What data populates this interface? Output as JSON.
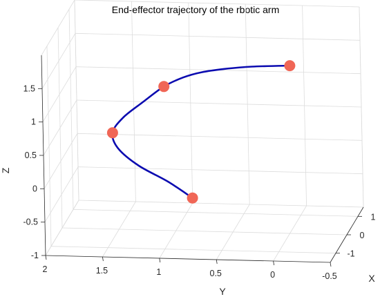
{
  "chart_data": {
    "type": "line3d",
    "title": "End-effector trajectory of the rbotic arm",
    "xlabel": "X",
    "ylabel": "Y",
    "zlabel": "Z",
    "xlim": [
      -1.5,
      1.5
    ],
    "ylim": [
      -0.5,
      2
    ],
    "zlim": [
      -1,
      2
    ],
    "x_ticks": [
      "-1",
      "0",
      "1"
    ],
    "y_ticks": [
      "2",
      "1.5",
      "1",
      "0.5",
      "0",
      "-0.5"
    ],
    "z_ticks": [
      "-1",
      "-0.5",
      "0",
      "0.5",
      "1",
      "1.5"
    ],
    "grid": true,
    "line_color": "#0b0bb0",
    "marker_color": "#f06656",
    "series": [
      {
        "x": [
          0.7,
          0.55,
          0.3,
          0.05,
          -0.2,
          -0.45,
          -0.65,
          -0.8,
          -0.9,
          -0.95,
          -1.0,
          -1.05,
          -1.2
        ],
        "y": [
          0.92,
          1.12,
          1.35,
          1.5,
          1.52,
          1.4,
          1.2,
          1.0,
          0.82,
          0.65,
          0.45,
          0.2,
          -0.15
        ],
        "z": [
          -0.7,
          -0.42,
          -0.12,
          0.2,
          0.5,
          0.8,
          1.1,
          1.38,
          1.55,
          1.65,
          1.72,
          1.78,
          1.85
        ]
      }
    ],
    "markers": {
      "x": [
        0.7,
        -0.2,
        -0.8,
        -1.2
      ],
      "y": [
        0.92,
        1.52,
        1.0,
        -0.15
      ],
      "z": [
        -0.7,
        0.5,
        1.38,
        1.85
      ]
    }
  }
}
